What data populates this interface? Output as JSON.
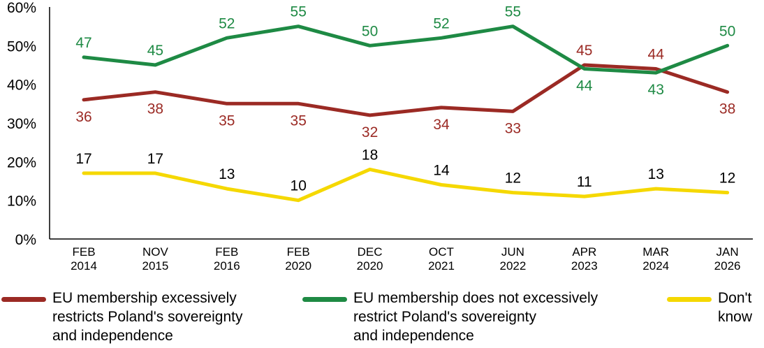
{
  "chart_data": {
    "type": "line",
    "categories": [
      [
        "FEB",
        "2014"
      ],
      [
        "NOV",
        "2015"
      ],
      [
        "FEB",
        "2016"
      ],
      [
        "FEB",
        "2020"
      ],
      [
        "DEC",
        "2020"
      ],
      [
        "OCT",
        "2021"
      ],
      [
        "JUN",
        "2022"
      ],
      [
        "APR",
        "2023"
      ],
      [
        "MAR",
        "2024"
      ],
      [
        "JAN",
        "2026"
      ]
    ],
    "yticks": [
      "0%",
      "10%",
      "20%",
      "30%",
      "40%",
      "50%",
      "60%"
    ],
    "ylim": [
      0,
      60
    ],
    "series": [
      {
        "name": "EU membership excessively restricts Poland's sovereignty and independence",
        "legend_lines": [
          "EU membership excessively",
          "restricts Poland's sovereignty",
          "and independence"
        ],
        "color": "#9b2a24",
        "values": [
          36,
          38,
          35,
          35,
          32,
          34,
          33,
          45,
          44,
          38
        ]
      },
      {
        "name": "EU membership does not excessively restrict Poland's sovereignty and independence",
        "legend_lines": [
          "EU membership does not excessively",
          "restrict Poland's sovereignty",
          "and independence"
        ],
        "color": "#1e8a44",
        "values": [
          47,
          45,
          52,
          55,
          50,
          52,
          55,
          44,
          43,
          50
        ]
      },
      {
        "name": "Don't know",
        "legend_lines": [
          "Don't",
          "know"
        ],
        "color": "#f5d800",
        "label_color": "#000000",
        "values": [
          17,
          17,
          13,
          10,
          18,
          14,
          12,
          11,
          13,
          12
        ]
      }
    ]
  }
}
